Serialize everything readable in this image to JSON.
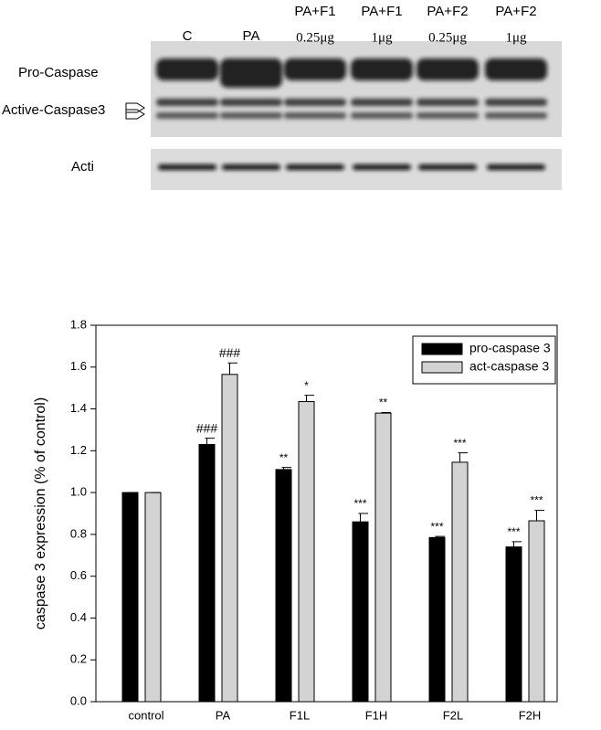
{
  "blot": {
    "lanes": [
      [
        "C"
      ],
      [
        "PA"
      ],
      [
        "PA+F1",
        "0.25μg"
      ],
      [
        "PA+F1",
        "1μg"
      ],
      [
        "PA+F2",
        "0.25μg"
      ],
      [
        "PA+F2",
        "1μg"
      ]
    ],
    "rows": [
      "Pro-Caspase",
      "Active-Caspase3",
      "Acti"
    ]
  },
  "chart_data": {
    "type": "bar",
    "y_label": "caspase 3 expression (% of control)",
    "categories": [
      "control",
      "PA",
      "F1L",
      "F1H",
      "F2L",
      "F2H"
    ],
    "series": [
      {
        "name": "pro-caspase 3",
        "color": "#000000",
        "values": [
          1.0,
          1.23,
          1.11,
          0.86,
          0.785,
          0.74
        ],
        "errors": [
          0,
          0.03,
          0.01,
          0.04,
          0.005,
          0.025
        ],
        "annotations": [
          null,
          "###",
          "**",
          "***",
          "***",
          "***"
        ]
      },
      {
        "name": "act-caspase 3",
        "color": "#d3d3d3",
        "values": [
          1.0,
          1.565,
          1.435,
          1.38,
          1.145,
          0.865
        ],
        "errors": [
          0,
          0.055,
          0.03,
          0.003,
          0.045,
          0.05
        ],
        "annotations": [
          null,
          "###",
          "*",
          "**",
          "***",
          "***"
        ]
      }
    ],
    "ylim": [
      0,
      1.8
    ],
    "yticks": [
      {
        "value": 0,
        "label": "0.0"
      },
      0.2,
      0.4,
      0.6,
      0.8,
      {
        "value": 1,
        "label": "1.0"
      },
      1.2,
      1.4,
      1.6,
      1.8
    ],
    "legend": "top-right"
  }
}
